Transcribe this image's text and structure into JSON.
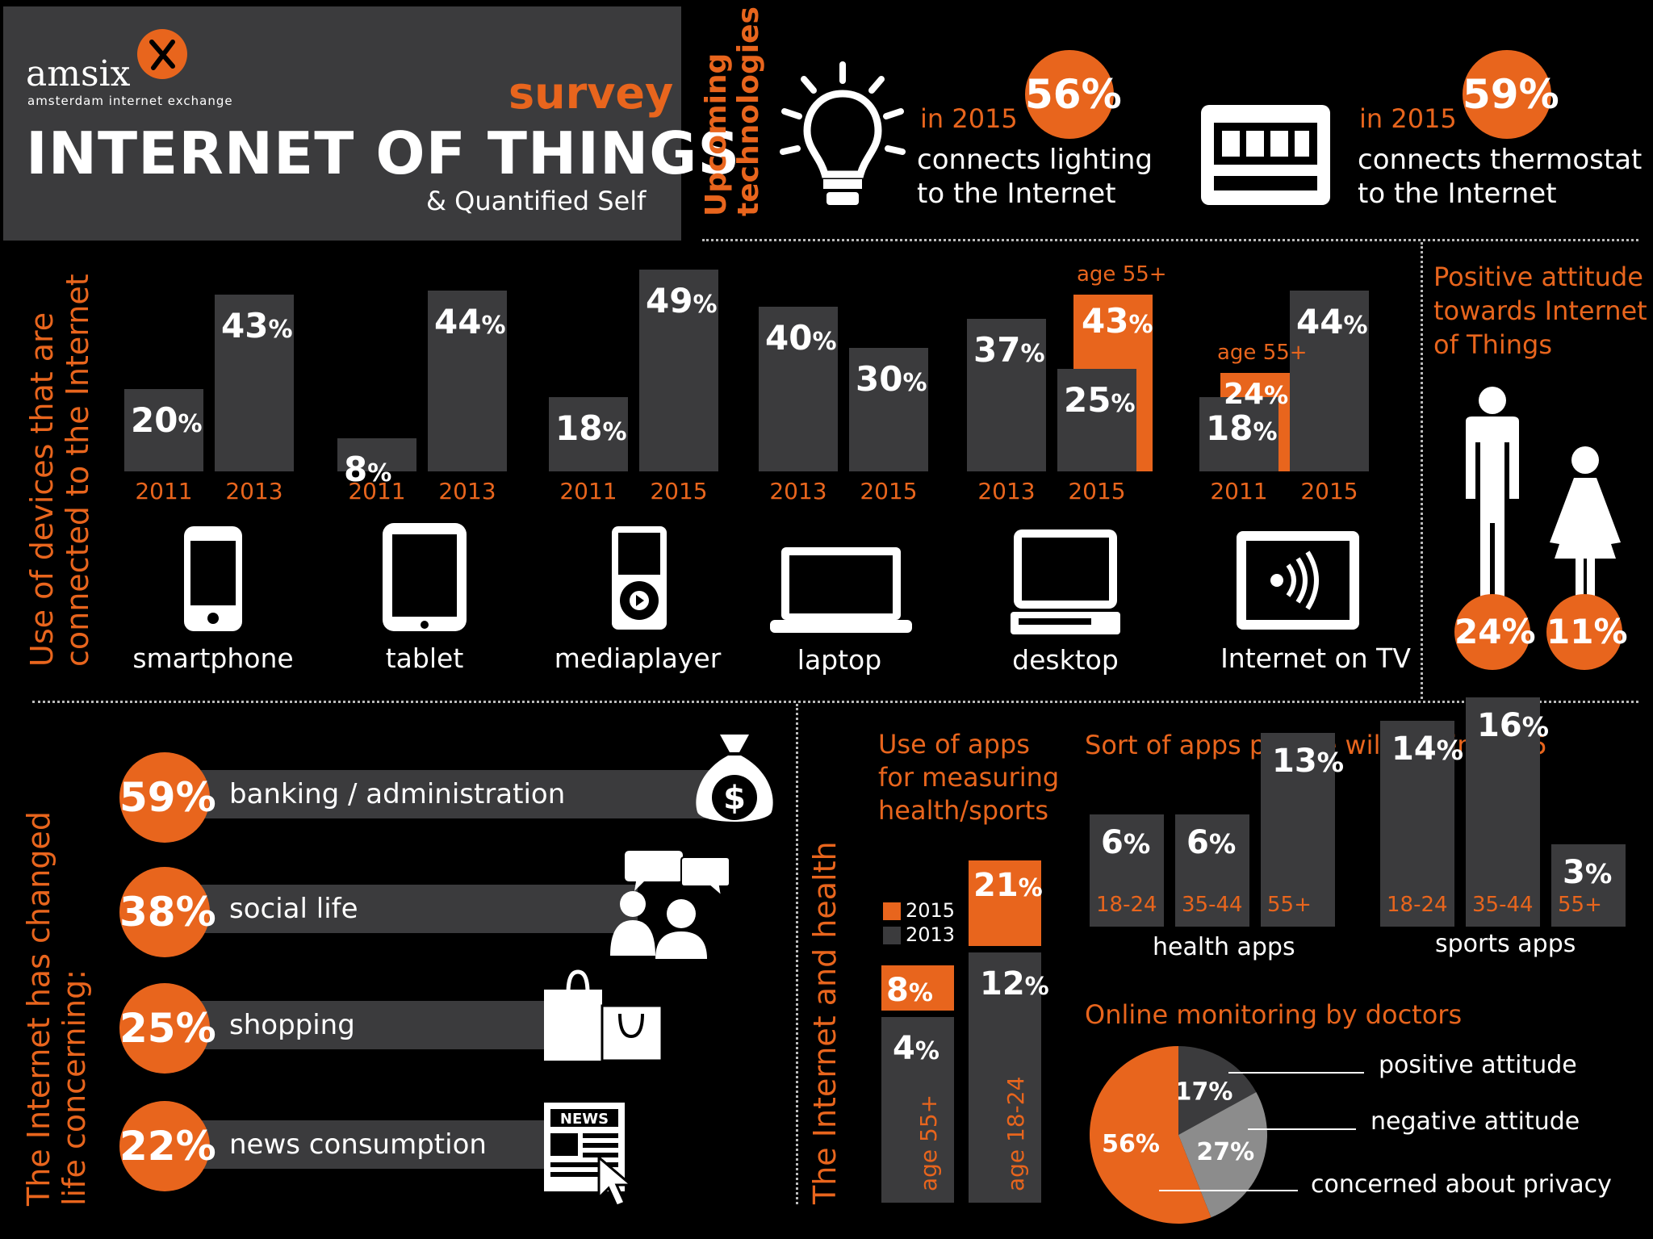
{
  "header": {
    "logo_text": "amsix",
    "logo_sub": "amsterdam internet exchange",
    "survey": "survey",
    "title": "INTERNET OF THINGS",
    "subtitle": "& Quantified Self"
  },
  "upcoming": {
    "label": "Upcoming technologies",
    "items": [
      {
        "pct": "56%",
        "year": "in 2015",
        "line1": "connects lighting",
        "line2": "to the Internet",
        "icon": "lightbulb-icon"
      },
      {
        "pct": "59%",
        "year": "in 2015",
        "line1": "connects thermostat",
        "line2": "to the Internet",
        "icon": "thermostat-icon"
      }
    ]
  },
  "devices_section": {
    "label_line1": "Use of devices that are",
    "label_line2": "connected to the Internet",
    "age_note": "age 55+",
    "devices": [
      "smartphone",
      "tablet",
      "mediaplayer",
      "laptop",
      "desktop",
      "Internet on TV"
    ]
  },
  "attitude": {
    "title_line1": "Positive attitude",
    "title_line2": "towards Internet",
    "title_line3": "of Things",
    "male": "24%",
    "female": "11%"
  },
  "life": {
    "label_line1": "The Internet has changed",
    "label_line2": "life concerning:",
    "items": [
      {
        "pct": "59%",
        "label": "banking / administration",
        "icon": "money-bag-icon"
      },
      {
        "pct": "38%",
        "label": "social life",
        "icon": "people-chat-icon"
      },
      {
        "pct": "25%",
        "label": "shopping",
        "icon": "shopping-bags-icon"
      },
      {
        "pct": "22%",
        "label": "news consumption",
        "icon": "newspaper-icon"
      }
    ]
  },
  "health": {
    "label": "The Internet and health",
    "apps_title_line1": "Use of apps",
    "apps_title_line2": "for measuring",
    "apps_title_line3": "health/sports",
    "legend_2015": "2015",
    "legend_2013": "2013",
    "sort_title": "Sort of apps people will use in 2015",
    "health_apps": "health apps",
    "sports_apps": "sports apps",
    "monitoring_title": "Online monitoring by doctors",
    "monitor_labels": [
      "positive attitude",
      "negative attitude",
      "concerned about privacy"
    ]
  },
  "colors": {
    "accent": "#e8651d",
    "bar": "#3b3b3d",
    "pie_gray": "#8c8c8c"
  },
  "chart_data": [
    {
      "type": "bar",
      "title": "Use of devices that are connected to the Internet",
      "groups": [
        {
          "device": "smartphone",
          "categories": [
            "2011",
            "2013"
          ],
          "values": [
            20,
            43
          ]
        },
        {
          "device": "tablet",
          "categories": [
            "2011",
            "2013"
          ],
          "values": [
            8,
            44
          ]
        },
        {
          "device": "mediaplayer",
          "categories": [
            "2011",
            "2015"
          ],
          "values": [
            18,
            49
          ]
        },
        {
          "device": "laptop",
          "categories": [
            "2013",
            "2015"
          ],
          "values": [
            40,
            30
          ]
        },
        {
          "device": "desktop",
          "categories": [
            "2013",
            "2015"
          ],
          "values": [
            37,
            25
          ],
          "age55_2015": 43
        },
        {
          "device": "Internet on TV",
          "categories": [
            "2011",
            "2015"
          ],
          "values": [
            18,
            44
          ],
          "age55_2011": 24
        }
      ],
      "unit": "%"
    },
    {
      "type": "bar",
      "title": "Use of apps for measuring health/sports",
      "categories": [
        "age 55+",
        "age 18-24"
      ],
      "series": [
        {
          "name": "2013",
          "values": [
            4,
            12
          ]
        },
        {
          "name": "2015",
          "values": [
            8,
            21
          ]
        }
      ],
      "unit": "%"
    },
    {
      "type": "bar",
      "title": "Sort of apps people will use in 2015",
      "groups": [
        {
          "name": "health apps",
          "categories": [
            "18-24",
            "35-44",
            "55+"
          ],
          "values": [
            6,
            6,
            13
          ]
        },
        {
          "name": "sports apps",
          "categories": [
            "18-24",
            "35-44",
            "55+"
          ],
          "values": [
            14,
            16,
            3
          ]
        }
      ],
      "unit": "%"
    },
    {
      "type": "pie",
      "title": "Online monitoring by doctors",
      "labels": [
        "positive attitude",
        "negative attitude",
        "concerned about privacy"
      ],
      "values": [
        17,
        27,
        56
      ],
      "unit": "%"
    }
  ]
}
